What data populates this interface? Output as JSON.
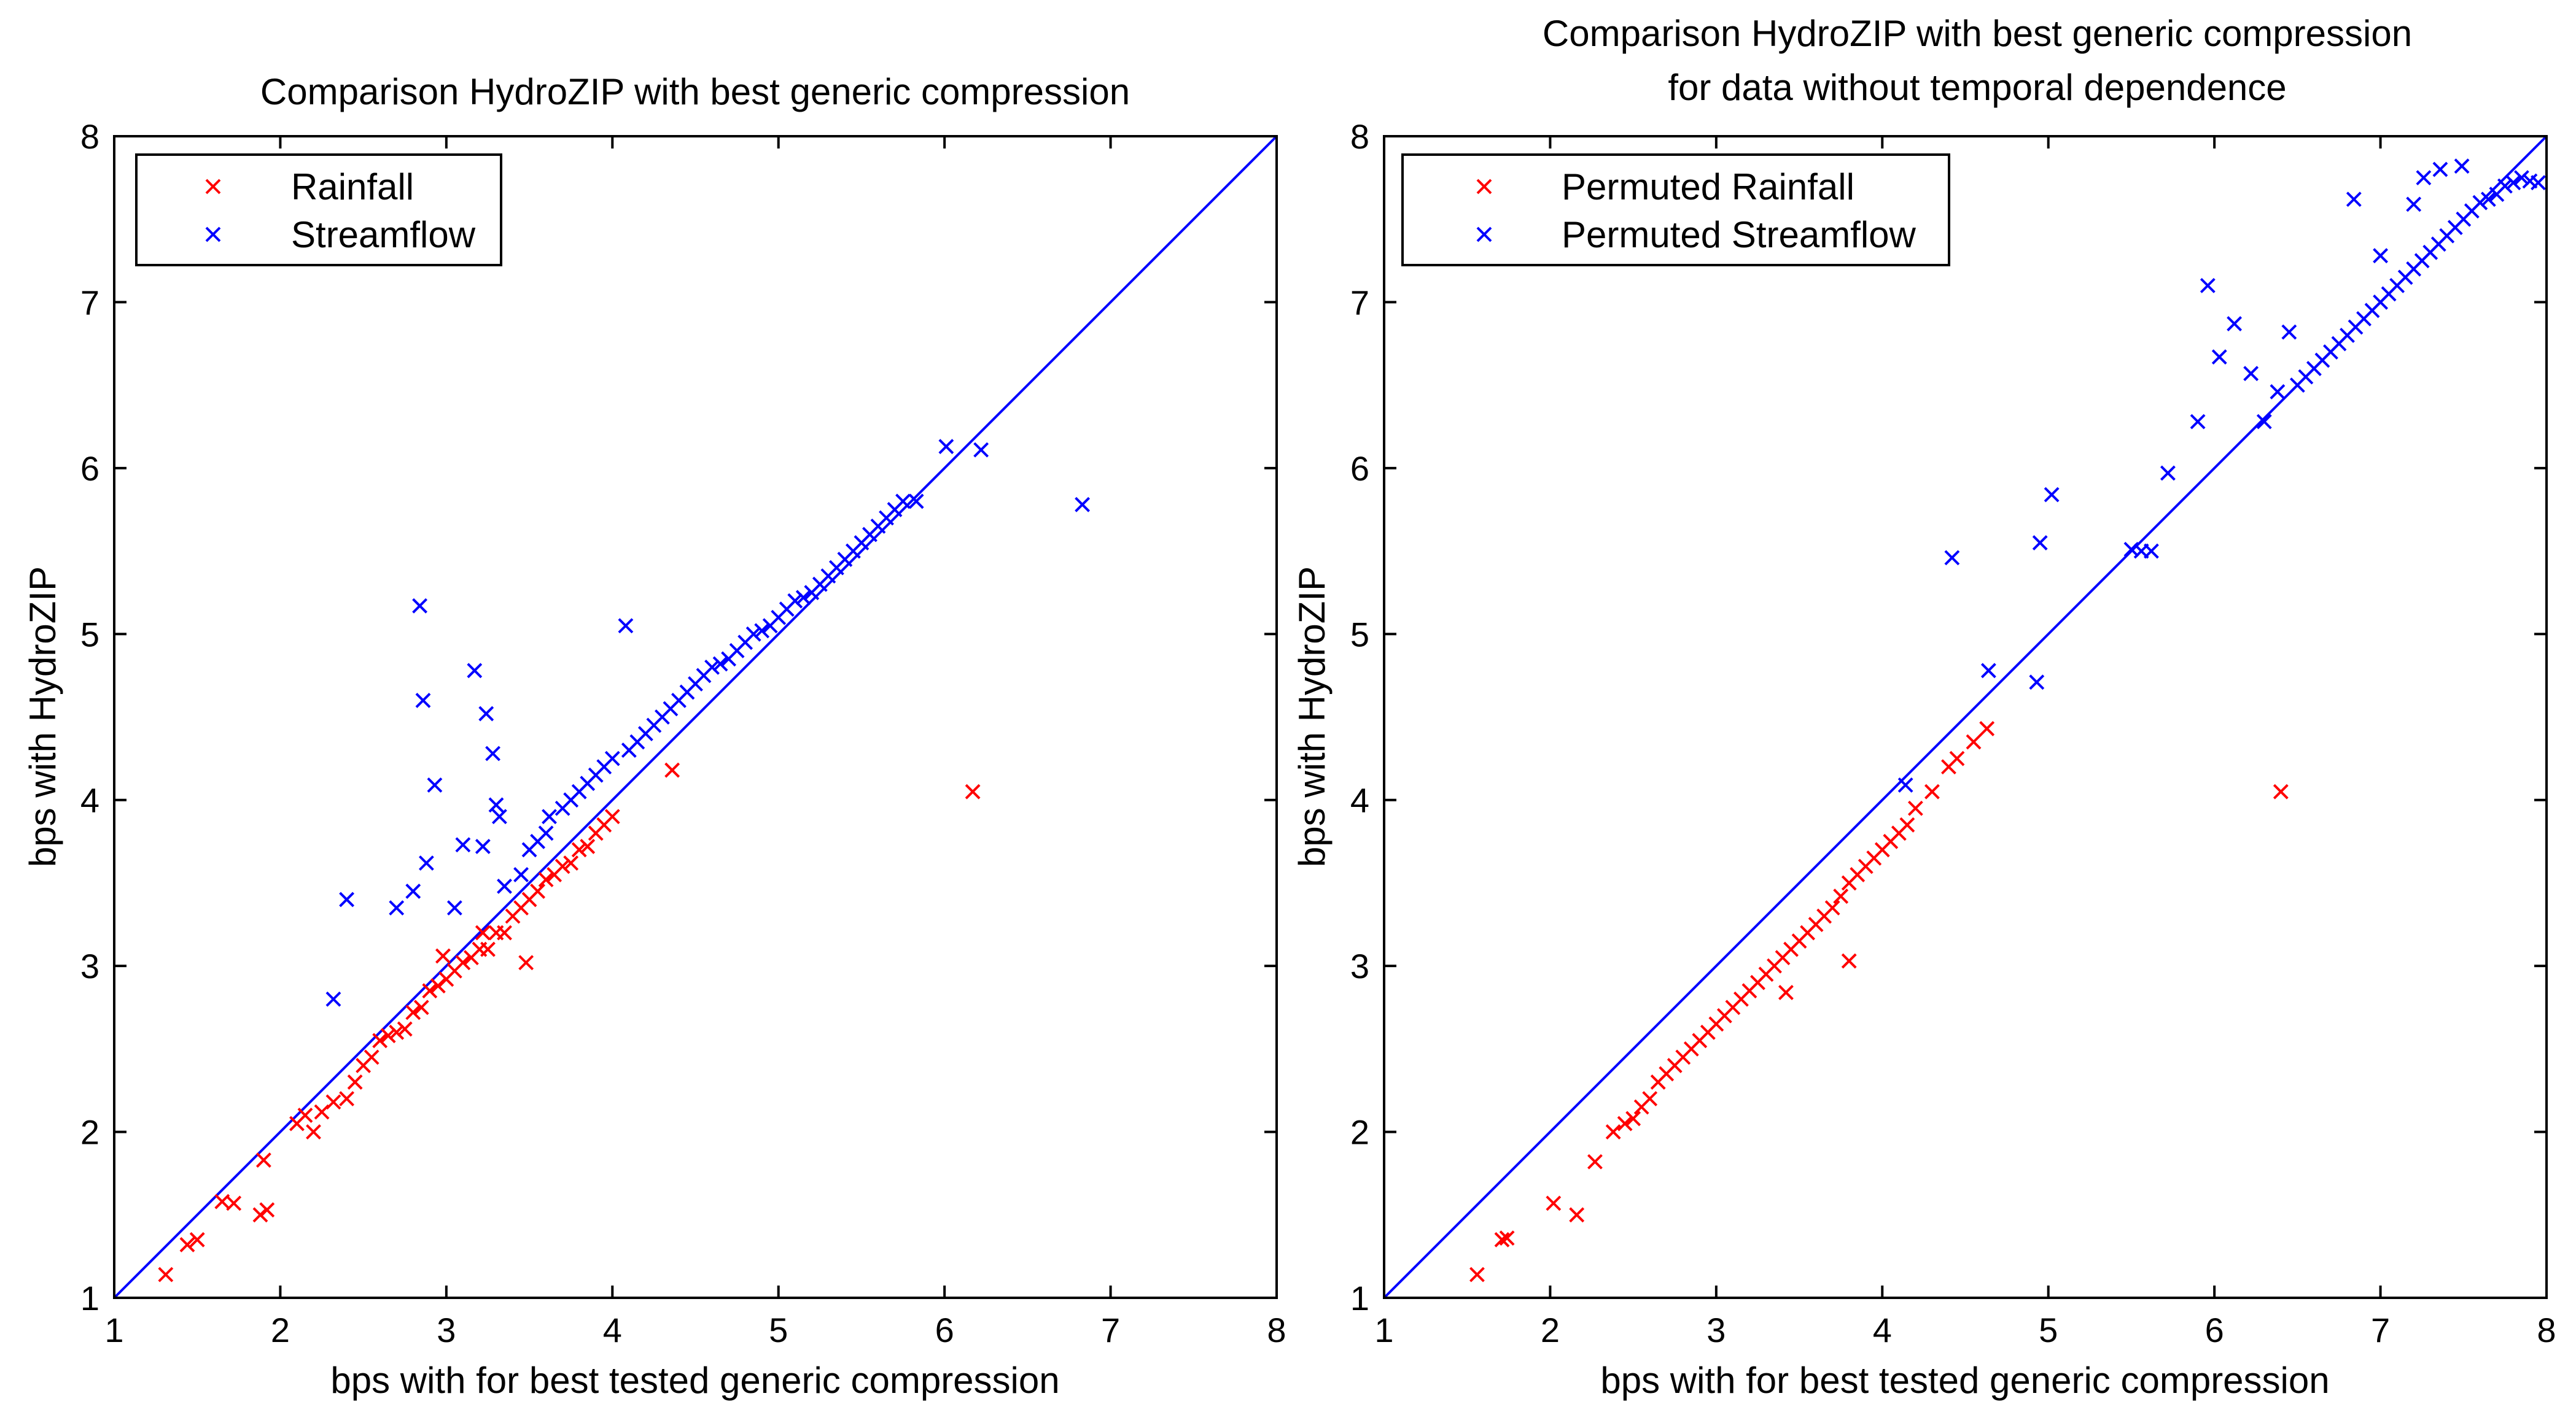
{
  "chart_data": [
    {
      "type": "scatter",
      "title": "Comparison HydroZIP with best generic compression",
      "xlabel": "bps with for best tested generic compression",
      "ylabel": "bps with HydroZIP",
      "xlim": [
        1,
        8
      ],
      "ylim": [
        1,
        8
      ],
      "xticks": [
        "1",
        "2",
        "3",
        "4",
        "5",
        "6",
        "7",
        "8"
      ],
      "yticks": [
        "1",
        "2",
        "3",
        "4",
        "5",
        "6",
        "7",
        "8"
      ],
      "legend_position": "top-left",
      "reference_line": {
        "x": [
          1,
          8
        ],
        "y": [
          1,
          8
        ],
        "color": "#0000ff"
      },
      "series": [
        {
          "name": "Rainfall",
          "color": "#ff0000",
          "marker": "x",
          "x": [
            1.31,
            1.44,
            1.5,
            1.65,
            1.72,
            1.88,
            1.92,
            1.9,
            2.1,
            2.15,
            2.2,
            2.25,
            2.32,
            2.4,
            2.45,
            2.5,
            2.55,
            2.6,
            2.65,
            2.7,
            2.75,
            2.8,
            2.85,
            2.9,
            2.95,
            3.0,
            3.05,
            3.1,
            3.15,
            3.2,
            3.25,
            3.3,
            3.35,
            3.4,
            3.45,
            3.5,
            3.55,
            3.6,
            3.65,
            3.7,
            3.75,
            3.8,
            3.85,
            3.9,
            3.95,
            4.0,
            4.36,
            6.17,
            2.98,
            3.22,
            3.48
          ],
          "y": [
            1.14,
            1.32,
            1.35,
            1.58,
            1.57,
            1.5,
            1.53,
            1.83,
            2.05,
            2.1,
            2.0,
            2.12,
            2.18,
            2.2,
            2.3,
            2.4,
            2.45,
            2.55,
            2.58,
            2.6,
            2.62,
            2.72,
            2.75,
            2.85,
            2.88,
            2.92,
            2.97,
            3.02,
            3.05,
            3.1,
            3.1,
            3.2,
            3.2,
            3.3,
            3.35,
            3.4,
            3.45,
            3.52,
            3.55,
            3.6,
            3.62,
            3.7,
            3.72,
            3.8,
            3.85,
            3.9,
            4.18,
            4.05,
            3.06,
            3.2,
            3.02
          ]
        },
        {
          "name": "Streamflow",
          "color": "#0000ff",
          "marker": "x",
          "x": [
            2.32,
            2.4,
            2.7,
            2.8,
            2.84,
            2.86,
            2.88,
            2.93,
            3.05,
            3.1,
            3.17,
            3.22,
            3.24,
            3.28,
            3.3,
            3.32,
            3.35,
            3.45,
            3.5,
            3.55,
            3.6,
            3.62,
            3.7,
            3.75,
            3.8,
            3.85,
            3.9,
            3.95,
            4.0,
            4.08,
            4.1,
            4.15,
            4.2,
            4.25,
            4.3,
            4.35,
            4.4,
            4.45,
            4.5,
            4.55,
            4.6,
            4.65,
            4.7,
            4.75,
            4.8,
            4.85,
            4.9,
            4.95,
            5.0,
            5.05,
            5.1,
            5.15,
            5.2,
            5.25,
            5.3,
            5.35,
            5.4,
            5.45,
            5.5,
            5.55,
            5.6,
            5.65,
            5.7,
            5.75,
            5.83,
            6.01,
            6.22,
            6.83
          ],
          "y": [
            2.8,
            3.4,
            3.35,
            3.45,
            5.17,
            4.6,
            3.62,
            4.09,
            3.35,
            3.73,
            4.78,
            3.72,
            4.52,
            4.28,
            3.97,
            3.9,
            3.48,
            3.55,
            3.7,
            3.75,
            3.8,
            3.9,
            3.95,
            4.0,
            4.05,
            4.1,
            4.15,
            4.2,
            4.25,
            5.05,
            4.3,
            4.35,
            4.4,
            4.45,
            4.5,
            4.55,
            4.6,
            4.65,
            4.7,
            4.75,
            4.8,
            4.82,
            4.85,
            4.9,
            4.95,
            5.0,
            5.02,
            5.05,
            5.1,
            5.15,
            5.2,
            5.22,
            5.25,
            5.3,
            5.35,
            5.4,
            5.45,
            5.5,
            5.55,
            5.6,
            5.65,
            5.7,
            5.75,
            5.8,
            5.8,
            6.13,
            6.11,
            5.78
          ]
        }
      ]
    },
    {
      "type": "scatter",
      "title": "Comparison HydroZIP with best generic compression",
      "subtitle": "for data without temporal dependence",
      "xlabel": "bps with for best tested generic compression",
      "ylabel": "bps with HydroZIP",
      "xlim": [
        1,
        8
      ],
      "ylim": [
        1,
        8
      ],
      "xticks": [
        "1",
        "2",
        "3",
        "4",
        "5",
        "6",
        "7",
        "8"
      ],
      "yticks": [
        "1",
        "2",
        "3",
        "4",
        "5",
        "6",
        "7",
        "8"
      ],
      "legend_position": "top-left",
      "reference_line": {
        "x": [
          1,
          8
        ],
        "y": [
          1,
          8
        ],
        "color": "#0000ff"
      },
      "series": [
        {
          "name": "Permuted Rainfall",
          "color": "#ff0000",
          "marker": "x",
          "x": [
            1.56,
            1.71,
            1.74,
            2.02,
            2.16,
            2.27,
            2.38,
            2.45,
            2.5,
            2.55,
            2.6,
            2.65,
            2.7,
            2.75,
            2.8,
            2.85,
            2.9,
            2.95,
            3.0,
            3.05,
            3.1,
            3.15,
            3.2,
            3.25,
            3.3,
            3.35,
            3.4,
            3.45,
            3.5,
            3.55,
            3.6,
            3.65,
            3.7,
            3.75,
            3.8,
            3.85,
            3.9,
            3.95,
            4.0,
            4.05,
            4.1,
            4.15,
            4.2,
            4.3,
            4.4,
            4.45,
            4.55,
            4.63,
            6.4,
            3.42,
            3.8
          ],
          "y": [
            1.14,
            1.35,
            1.36,
            1.57,
            1.5,
            1.82,
            2.0,
            2.05,
            2.08,
            2.15,
            2.2,
            2.3,
            2.35,
            2.4,
            2.45,
            2.5,
            2.55,
            2.6,
            2.65,
            2.7,
            2.75,
            2.8,
            2.85,
            2.9,
            2.95,
            3.0,
            3.05,
            3.1,
            3.15,
            3.2,
            3.25,
            3.3,
            3.35,
            3.42,
            3.5,
            3.55,
            3.6,
            3.65,
            3.7,
            3.75,
            3.8,
            3.85,
            3.95,
            4.05,
            4.2,
            4.25,
            4.35,
            4.43,
            4.05,
            2.84,
            3.03
          ]
        },
        {
          "name": "Permuted Streamflow",
          "color": "#0000ff",
          "marker": "x",
          "x": [
            4.14,
            4.42,
            4.64,
            4.93,
            4.95,
            5.02,
            5.5,
            5.56,
            5.62,
            5.72,
            5.9,
            5.96,
            6.03,
            6.12,
            6.22,
            6.3,
            6.38,
            6.45,
            6.5,
            6.55,
            6.6,
            6.65,
            6.7,
            6.75,
            6.8,
            6.85,
            6.9,
            6.95,
            7.0,
            7.05,
            7.1,
            7.15,
            7.2,
            7.25,
            7.3,
            7.35,
            7.4,
            7.45,
            7.5,
            7.55,
            7.6,
            7.65,
            7.7,
            7.75,
            7.8,
            7.85,
            7.9,
            7.95,
            6.84,
            7.2,
            7.36,
            7.49,
            7.26,
            7.0
          ],
          "y": [
            4.09,
            5.46,
            4.78,
            4.71,
            5.55,
            5.84,
            5.51,
            5.5,
            5.5,
            5.97,
            6.28,
            7.1,
            6.67,
            6.87,
            6.57,
            6.28,
            6.46,
            6.82,
            6.5,
            6.55,
            6.6,
            6.65,
            6.7,
            6.75,
            6.8,
            6.85,
            6.9,
            6.95,
            7.0,
            7.05,
            7.1,
            7.15,
            7.2,
            7.25,
            7.3,
            7.35,
            7.4,
            7.45,
            7.5,
            7.55,
            7.6,
            7.62,
            7.65,
            7.7,
            7.72,
            7.75,
            7.73,
            7.72,
            7.62,
            7.59,
            7.8,
            7.82,
            7.75,
            7.28
          ]
        }
      ]
    }
  ]
}
